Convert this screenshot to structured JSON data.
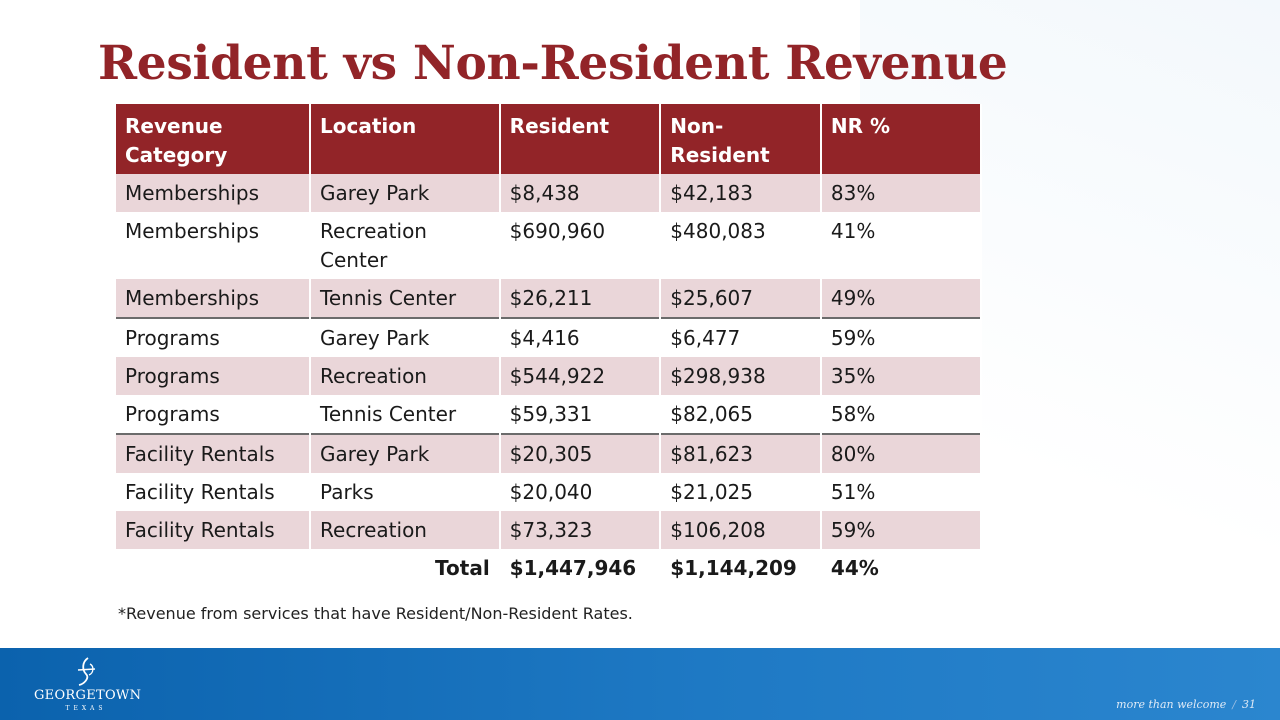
{
  "slide": {
    "title": "Resident vs Non-Resident Revenue",
    "footnote": "*Revenue from services that have Resident/Non-Resident Rates.",
    "page_number": "31",
    "tagline": "more than welcome"
  },
  "logo": {
    "name": "GEORGETOWN",
    "sub": "TEXAS"
  },
  "table": {
    "headers": [
      "Revenue Category",
      "Location",
      "Resident",
      "Non-Resident",
      "NR %"
    ],
    "rows": [
      [
        "Memberships",
        "Garey Park",
        "$8,438",
        "$42,183",
        "83%"
      ],
      [
        "Memberships",
        "Recreation Center",
        "$690,960",
        "$480,083",
        "41%"
      ],
      [
        "Memberships",
        "Tennis Center",
        "$26,211",
        "$25,607",
        "49%"
      ],
      [
        "Programs",
        "Garey Park",
        "$4,416",
        "$6,477",
        "59%"
      ],
      [
        "Programs",
        "Recreation",
        "$544,922",
        "$298,938",
        "35%"
      ],
      [
        "Programs",
        "Tennis Center",
        "$59,331",
        "$82,065",
        "58%"
      ],
      [
        "Facility Rentals",
        "Garey Park",
        "$20,305",
        "$81,623",
        "80%"
      ],
      [
        "Facility Rentals",
        "Parks",
        "$20,040",
        "$21,025",
        "51%"
      ],
      [
        "Facility Rentals",
        "Recreation",
        "$73,323",
        "$106,208",
        "59%"
      ]
    ],
    "total": {
      "label": "Total",
      "resident": "$1,447,946",
      "non_resident": "$1,144,209",
      "nr_pct": "44%"
    }
  }
}
